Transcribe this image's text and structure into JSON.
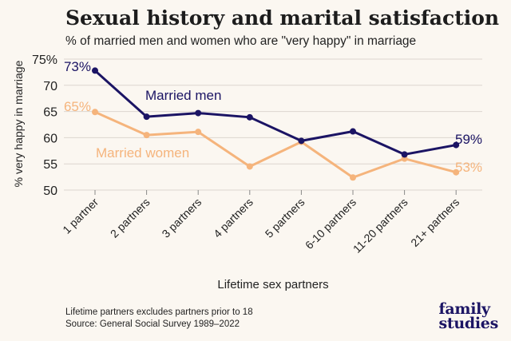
{
  "header": {
    "title": "Sexual history and marital satisfaction",
    "subtitle": "% of married men and women who are \"very happy\" in marriage"
  },
  "footer": {
    "note1": "Lifetime partners excludes partners prior to 18",
    "note2": "Source: General Social Survey 1989–2022"
  },
  "logo": {
    "line1": "family",
    "line2": "studies"
  },
  "colors": {
    "men": "#1b1464",
    "women": "#f5b47c",
    "grid": "#dcd6cf",
    "background": "#fbf7f1"
  },
  "chart_data": {
    "type": "line",
    "xlabel": "Lifetime sex partners",
    "ylabel": "% very happy in marriage",
    "ylim": [
      50,
      75
    ],
    "yticks": [
      50,
      55,
      60,
      65,
      70,
      75
    ],
    "ytick_labels": [
      "50",
      "55",
      "60",
      "65",
      "70",
      "75%"
    ],
    "grid": true,
    "categories": [
      "1 partner",
      "2 partners",
      "3 partners",
      "4 partners",
      "5 partners",
      "6-10 partners",
      "11-20 partners",
      "21+ partners"
    ],
    "series": [
      {
        "name": "Married men",
        "key": "men",
        "values": [
          72.8,
          64.0,
          64.7,
          63.9,
          59.4,
          61.2,
          56.8,
          58.6
        ],
        "start_label": "73%",
        "end_label": "59%"
      },
      {
        "name": "Married women",
        "key": "women",
        "values": [
          64.9,
          60.5,
          61.1,
          54.5,
          59.2,
          52.4,
          56.0,
          53.4
        ],
        "start_label": "65%",
        "end_label": "53%"
      }
    ]
  }
}
